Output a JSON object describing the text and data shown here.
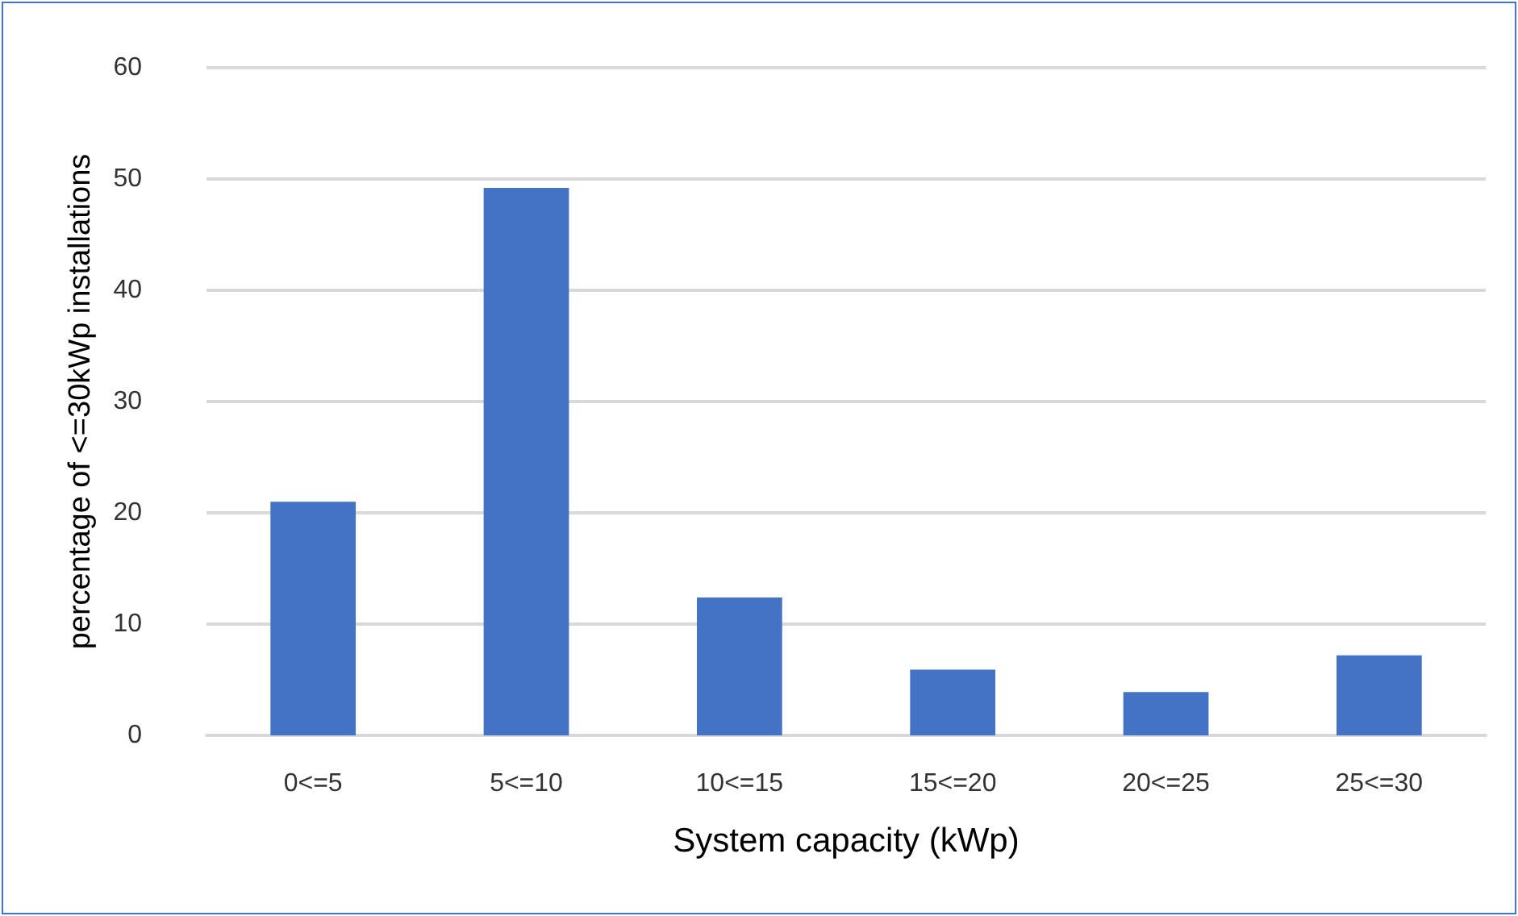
{
  "chart_data": {
    "type": "bar",
    "xlabel": "System capacity (kWp)",
    "ylabel": "percentage of <=30kWp installations",
    "categories": [
      "0<=5",
      "5<=10",
      "10<=15",
      "15<=20",
      "20<=25",
      "25<=30"
    ],
    "values": [
      21.0,
      49.2,
      12.4,
      5.9,
      3.9,
      7.2
    ],
    "color": "#4472c4",
    "ylim": [
      0,
      60
    ],
    "yticks": [
      0,
      10,
      20,
      30,
      40,
      50,
      60
    ],
    "grid": "y"
  }
}
